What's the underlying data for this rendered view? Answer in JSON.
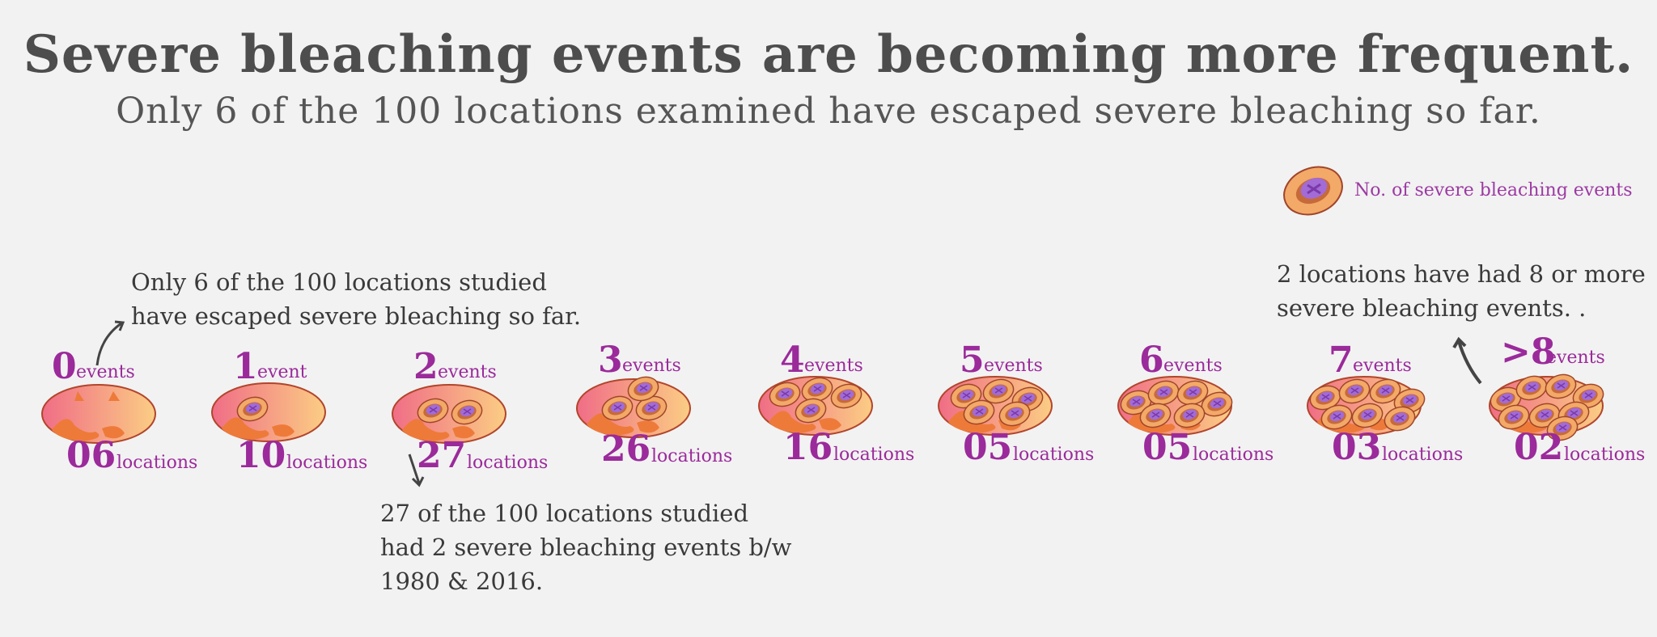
{
  "title": "Severe bleaching events are becoming more frequent.",
  "subtitle": "Only 6 of the 100 locations examined have escaped severe bleaching so far.",
  "legend": {
    "label": "No. of severe bleaching events",
    "icon": "polyp-icon"
  },
  "annotations": [
    {
      "id": "zero",
      "text": "Only 6 of the 100 locations studied\nhave escaped severe bleaching so far."
    },
    {
      "id": "two",
      "text": "27 of the 100 locations studied\nhad 2 severe bleaching events b/w\n1980 & 2016."
    },
    {
      "id": "eight",
      "text": "2 locations have had 8 or more\nsevere bleaching events. ."
    }
  ],
  "colors": {
    "accent": "#9b2a9b",
    "coral_pink": "#f07880",
    "coral_orange": "#ee7a3a",
    "polyp": "#f3a968"
  },
  "chart_data": {
    "type": "pictogram",
    "title": "Severe bleaching events are becoming more frequent.",
    "subtitle": "Only 6 of the 100 locations examined have escaped severe bleaching so far.",
    "categories": [
      "0",
      "1",
      "2",
      "3",
      "4",
      "5",
      "6",
      "7",
      ">8"
    ],
    "event_labels": [
      "events",
      "event",
      "events",
      "events",
      "events",
      "events",
      "events",
      "events",
      "events"
    ],
    "location_labels": [
      "06",
      "10",
      "27",
      "26",
      "16",
      "05",
      "05",
      "03",
      "02"
    ],
    "location_word": "locations",
    "values": [
      6,
      10,
      27,
      26,
      16,
      5,
      5,
      3,
      2
    ],
    "polyps": [
      0,
      1,
      2,
      3,
      4,
      5,
      6,
      7,
      8
    ]
  }
}
